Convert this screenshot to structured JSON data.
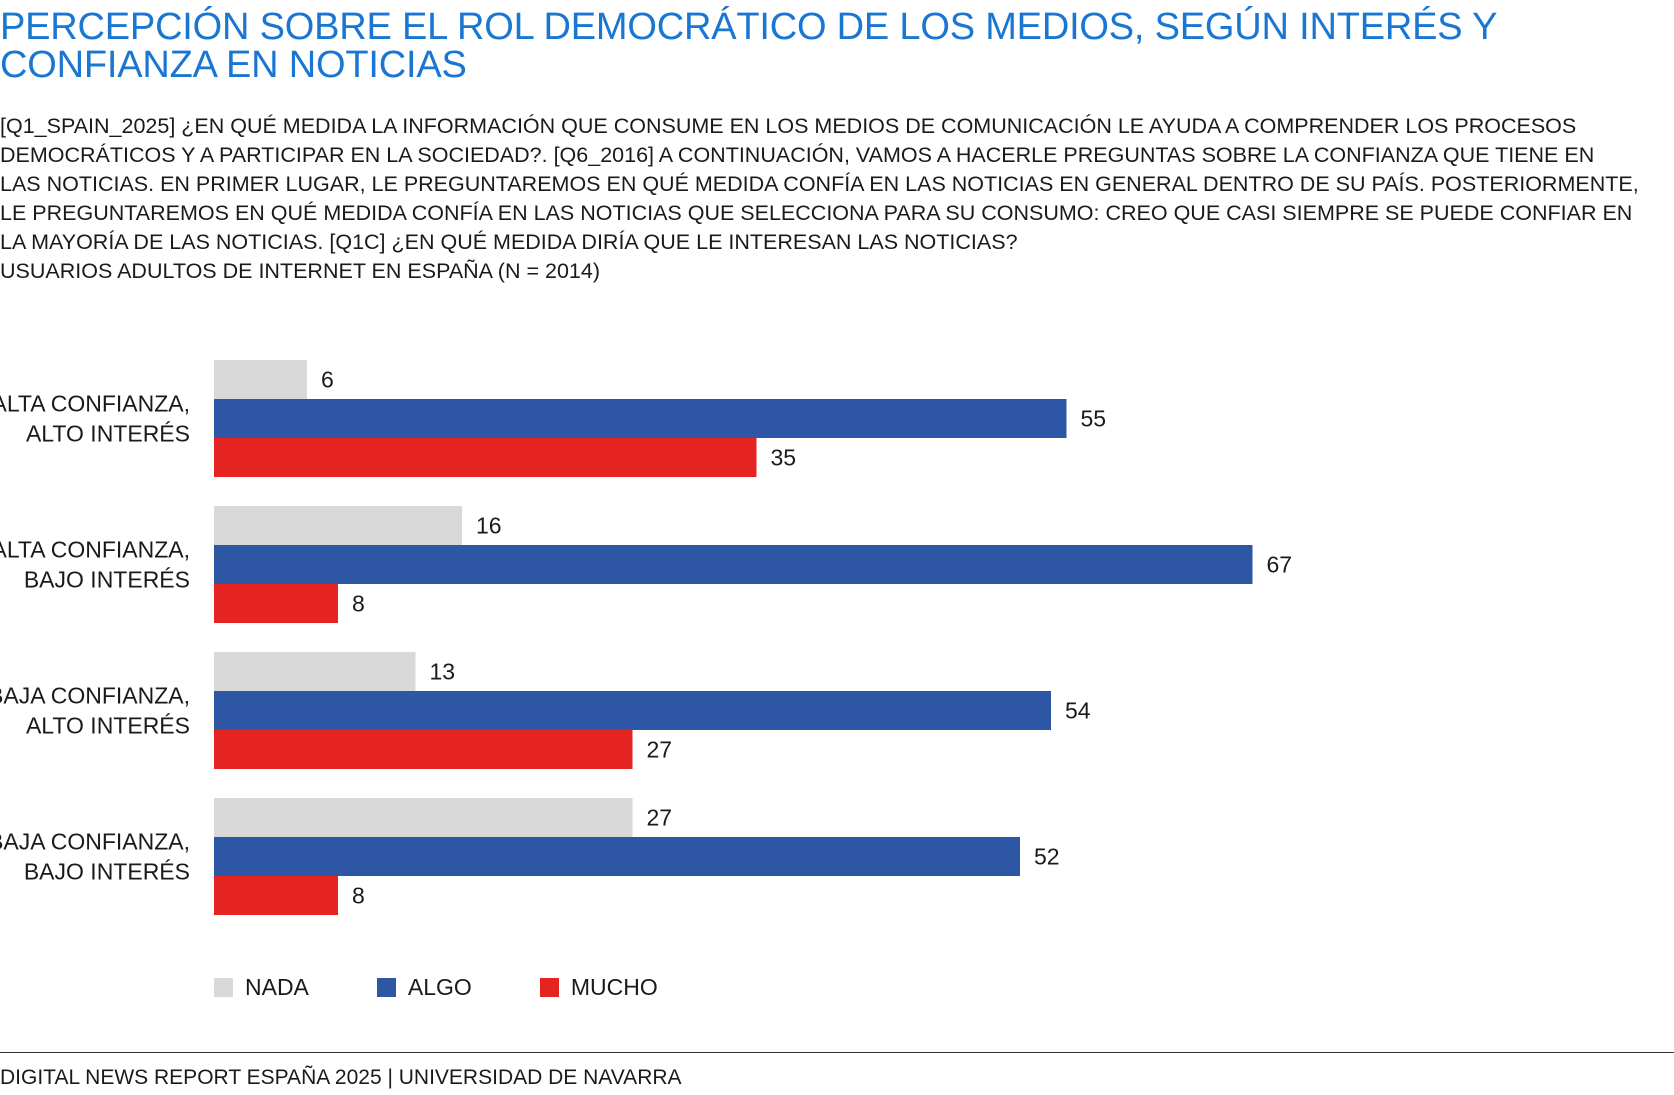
{
  "title": "PERCEPCIÓN SOBRE EL ROL DEMOCRÁTICO DE LOS MEDIOS, SEGÚN INTERÉS Y CONFIANZA EN NOTICIAS",
  "description": "[Q1_SPAIN_2025] ¿EN QUÉ MEDIDA LA INFORMACIÓN QUE CONSUME EN LOS MEDIOS DE COMUNICACIÓN LE AYUDA A COMPRENDER LOS PROCESOS DEMOCRÁTICOS Y A PARTICIPAR EN LA SOCIEDAD?. [Q6_2016] A CONTINUACIÓN, VAMOS A HACERLE PREGUNTAS SOBRE LA CONFIANZA QUE TIENE EN LAS NOTICIAS. EN PRIMER LUGAR, LE PREGUNTAREMOS EN QUÉ MEDIDA CONFÍA EN LAS NOTICIAS EN GENERAL DENTRO DE SU PAÍS. POSTERIORMENTE, LE PREGUNTAREMOS EN QUÉ MEDIDA CONFÍA EN LAS NOTICIAS QUE SELECCIONA PARA SU CONSUMO: CREO QUE CASI SIEMPRE SE PUEDE CONFIAR EN LA MAYORÍA DE LAS NOTICIAS. [Q1C] ¿EN QUÉ MEDIDA DIRÍA QUE LE INTERESAN LAS NOTICIAS?",
  "sample": "USUARIOS ADULTOS DE INTERNET EN ESPAÑA (N = 2014)",
  "footer": "DIGITAL NEWS REPORT ESPAÑA 2025 | UNIVERSIDAD DE NAVARRA",
  "chart_data": {
    "type": "bar",
    "orientation": "horizontal",
    "categories": [
      [
        "ALTA CONFIANZA,",
        "ALTO INTERÉS"
      ],
      [
        "ALTA CONFIANZA,",
        "BAJO INTERÉS"
      ],
      [
        "BAJA CONFIANZA,",
        "ALTO INTERÉS"
      ],
      [
        "BAJA CONFIANZA,",
        "BAJO INTERÉS"
      ]
    ],
    "series": [
      {
        "name": "NADA",
        "color": "#d9d9d9",
        "values": [
          6,
          16,
          13,
          27
        ]
      },
      {
        "name": "ALGO",
        "color": "#2d57a4",
        "values": [
          55,
          67,
          54,
          52
        ]
      },
      {
        "name": "MUCHO",
        "color": "#e52421",
        "values": [
          35,
          8,
          27,
          8
        ]
      }
    ],
    "xlim": [
      0,
      100
    ],
    "grid": false,
    "legend_position": "bottom-left"
  }
}
